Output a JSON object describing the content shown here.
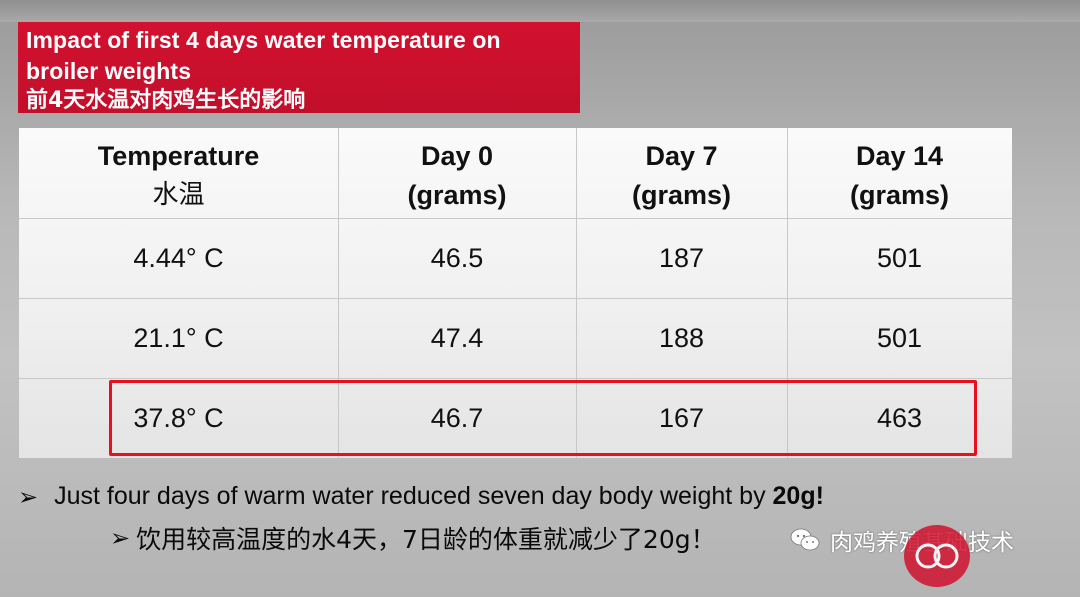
{
  "slide": {
    "title_en": "Impact of first 4 days water temperature on broiler weights",
    "title_cn": "前4天水温对肉鸡生长的影响"
  },
  "table": {
    "headers": [
      {
        "line1": "Temperature",
        "line2": "水温"
      },
      {
        "line1": "Day 0",
        "line2": "(grams)"
      },
      {
        "line1": "Day 7",
        "line2": "(grams)"
      },
      {
        "line1": "Day 14",
        "line2": "(grams)"
      }
    ],
    "rows": [
      [
        "4.44° C",
        "46.5",
        "187",
        "501"
      ],
      [
        "21.1° C",
        "47.4",
        "188",
        "501"
      ],
      [
        "37.8° C",
        "46.7",
        "167",
        "463"
      ]
    ],
    "highlighted_row_index": 2
  },
  "bullets": {
    "en_prefix": "Just four days of warm water reduced seven day body weight by ",
    "en_bold": "20g!",
    "cn": "饮用较高温度的水4天，7日龄的体重就减少了20g！"
  },
  "watermark": {
    "text": "肉鸡养殖基础技术"
  },
  "colors": {
    "title_bg": "#c8102e",
    "highlight_border": "#e8101f"
  }
}
